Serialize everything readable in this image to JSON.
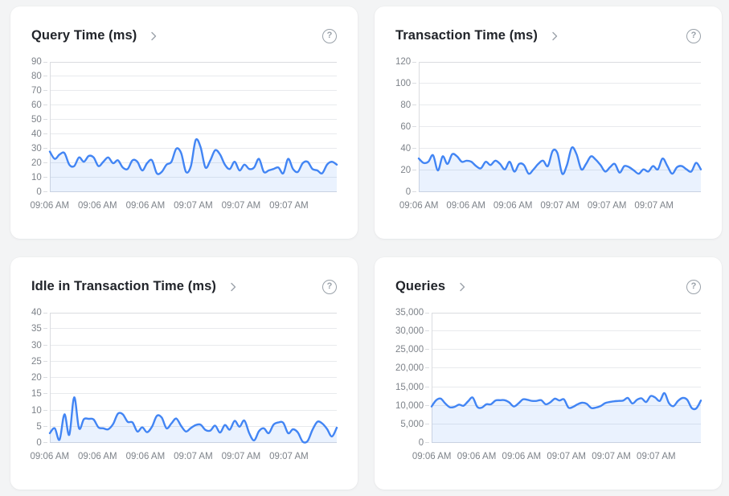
{
  "icons": {
    "help_glyph": "?"
  },
  "colors": {
    "line": "#4285f4",
    "area_fill": "rgba(66,133,244,0.11)",
    "grid": "#e8eaed",
    "axis": "#dadce0",
    "tick": "#dadce0"
  },
  "chart_data": [
    {
      "type": "area",
      "title": "Query Time (ms)",
      "ylim": [
        0,
        90
      ],
      "y_ticks": [
        "90",
        "80",
        "70",
        "60",
        "50",
        "40",
        "30",
        "20",
        "10",
        "0"
      ],
      "x_ticks": [
        "09:06 AM",
        "09:06 AM",
        "09:06 AM",
        "09:07 AM",
        "09:07 AM",
        "09:07 AM"
      ],
      "values": [
        28,
        23,
        26,
        27,
        19,
        18,
        24,
        21,
        25,
        24,
        18,
        21,
        24,
        20,
        22,
        17,
        16,
        22,
        21,
        15,
        20,
        22,
        13,
        14,
        19,
        21,
        30,
        27,
        14,
        18,
        36,
        31,
        17,
        22,
        29,
        26,
        19,
        16,
        21,
        15,
        19,
        16,
        17,
        23,
        14,
        15,
        16,
        17,
        13,
        23,
        16,
        14,
        20,
        21,
        16,
        15,
        13,
        19,
        21,
        19
      ],
      "legend": "none",
      "grid": "horizontal"
    },
    {
      "type": "area",
      "title": "Transaction Time (ms)",
      "ylim": [
        0,
        120
      ],
      "y_ticks": [
        "120",
        "100",
        "80",
        "60",
        "40",
        "20",
        "0"
      ],
      "x_ticks": [
        "09:06 AM",
        "09:06 AM",
        "09:06 AM",
        "09:07 AM",
        "09:07 AM",
        "09:07 AM"
      ],
      "values": [
        31,
        27,
        28,
        34,
        20,
        33,
        26,
        35,
        33,
        28,
        29,
        28,
        24,
        22,
        28,
        25,
        29,
        26,
        21,
        28,
        19,
        26,
        25,
        17,
        21,
        26,
        29,
        24,
        38,
        36,
        17,
        25,
        41,
        35,
        21,
        26,
        33,
        30,
        25,
        19,
        23,
        26,
        18,
        24,
        23,
        20,
        17,
        21,
        19,
        24,
        21,
        31,
        24,
        17,
        23,
        24,
        21,
        19,
        27,
        21
      ],
      "legend": "none",
      "grid": "horizontal"
    },
    {
      "type": "area",
      "title": "Idle in Transaction Time (ms)",
      "ylim": [
        0,
        40
      ],
      "y_ticks": [
        "40",
        "35",
        "30",
        "25",
        "20",
        "15",
        "10",
        "5",
        "0"
      ],
      "x_ticks": [
        "09:06 AM",
        "09:06 AM",
        "09:06 AM",
        "09:07 AM",
        "09:07 AM",
        "09:07 AM"
      ],
      "values": [
        3,
        4.5,
        1,
        8.8,
        2.5,
        14,
        4.5,
        7.3,
        7.4,
        7.2,
        4.8,
        4.5,
        4.2,
        5.8,
        9,
        8.8,
        6.5,
        6.3,
        3.5,
        4.8,
        3.3,
        5,
        8.3,
        7.8,
        4.5,
        6,
        7.5,
        5.2,
        3.5,
        4.6,
        5.5,
        5.6,
        4,
        3.8,
        5.3,
        3.2,
        5.5,
        4.1,
        6.8,
        5,
        6.9,
        3,
        0.8,
        3.6,
        4.5,
        3,
        5.6,
        6.3,
        6.2,
        3,
        4.2,
        3.2,
        0.4,
        0.6,
        4,
        6.5,
        6,
        4.3,
        2,
        4.7
      ],
      "legend": "none",
      "grid": "horizontal"
    },
    {
      "type": "area",
      "title": "Queries",
      "ylim": [
        0,
        35000
      ],
      "y_ticks": [
        "35,000",
        "30,000",
        "25,000",
        "20,000",
        "15,000",
        "10,000",
        "5,000",
        "0"
      ],
      "x_ticks": [
        "09:06 AM",
        "09:06 AM",
        "09:06 AM",
        "09:07 AM",
        "09:07 AM",
        "09:07 AM"
      ],
      "values": [
        9800,
        11500,
        11900,
        10600,
        9600,
        9700,
        10300,
        10000,
        11200,
        12200,
        9700,
        9500,
        10400,
        10400,
        11400,
        11500,
        11500,
        10900,
        9800,
        10600,
        11700,
        11600,
        11300,
        11300,
        11500,
        10400,
        10900,
        11900,
        11400,
        11700,
        9500,
        9700,
        10400,
        10800,
        10500,
        9400,
        9500,
        9900,
        10700,
        11000,
        11200,
        11300,
        11400,
        12100,
        10600,
        11600,
        12000,
        11000,
        12600,
        12200,
        11300,
        13400,
        10700,
        9900,
        11300,
        12100,
        11600,
        9400,
        9300,
        11400
      ],
      "legend": "none",
      "grid": "horizontal"
    }
  ]
}
